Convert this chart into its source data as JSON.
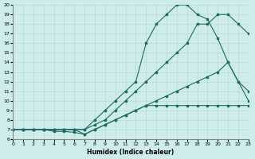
{
  "xlabel": "Humidex (Indice chaleur)",
  "xlim": [
    0,
    23
  ],
  "ylim": [
    6,
    20
  ],
  "xticks": [
    0,
    1,
    2,
    3,
    4,
    5,
    6,
    7,
    8,
    9,
    10,
    11,
    12,
    13,
    14,
    15,
    16,
    17,
    18,
    19,
    20,
    21,
    22,
    23
  ],
  "yticks": [
    6,
    7,
    8,
    9,
    10,
    11,
    12,
    13,
    14,
    15,
    16,
    17,
    18,
    19,
    20
  ],
  "bg_color": "#ceecea",
  "line_color": "#1a6b62",
  "lines": [
    {
      "x": [
        0,
        1,
        2,
        3,
        4,
        5,
        6,
        7,
        8,
        9,
        10,
        11,
        12,
        13,
        14,
        15,
        16,
        17,
        18,
        19,
        20,
        21,
        22,
        23
      ],
      "y": [
        7,
        7,
        7,
        7,
        7,
        7,
        7,
        7,
        8,
        9,
        10,
        11,
        12,
        16,
        18,
        19,
        20,
        20,
        19,
        18.5,
        16.5,
        14,
        12,
        11
      ]
    },
    {
      "x": [
        0,
        1,
        2,
        3,
        4,
        5,
        6,
        7,
        8,
        9,
        10,
        11,
        12,
        13,
        14,
        15,
        16,
        17,
        18,
        19,
        20,
        21,
        22,
        23
      ],
      "y": [
        7,
        7,
        7,
        7,
        7,
        7,
        7,
        7,
        7.5,
        8,
        9,
        10,
        11,
        12,
        13,
        14,
        15,
        16,
        18,
        18,
        19,
        19,
        18,
        17
      ]
    },
    {
      "x": [
        0,
        1,
        2,
        3,
        4,
        5,
        6,
        7,
        8,
        9,
        10,
        11,
        12,
        13,
        14,
        15,
        16,
        17,
        18,
        19,
        20,
        21,
        22,
        23
      ],
      "y": [
        7,
        7,
        7,
        7,
        7,
        7,
        7,
        6.5,
        7,
        7.5,
        8,
        8.5,
        9,
        9.5,
        10,
        10.5,
        11,
        11.5,
        12,
        12.5,
        13,
        14,
        12,
        10
      ]
    },
    {
      "x": [
        0,
        1,
        2,
        3,
        4,
        5,
        6,
        7,
        8,
        9,
        10,
        11,
        12,
        13,
        14,
        15,
        16,
        17,
        18,
        19,
        20,
        21,
        22,
        23
      ],
      "y": [
        7,
        7,
        7,
        7,
        6.8,
        6.8,
        6.7,
        6.5,
        7,
        7.5,
        8,
        8.5,
        9,
        9.5,
        9.5,
        9.5,
        9.5,
        9.5,
        9.5,
        9.5,
        9.5,
        9.5,
        9.5,
        9.5
      ]
    }
  ]
}
